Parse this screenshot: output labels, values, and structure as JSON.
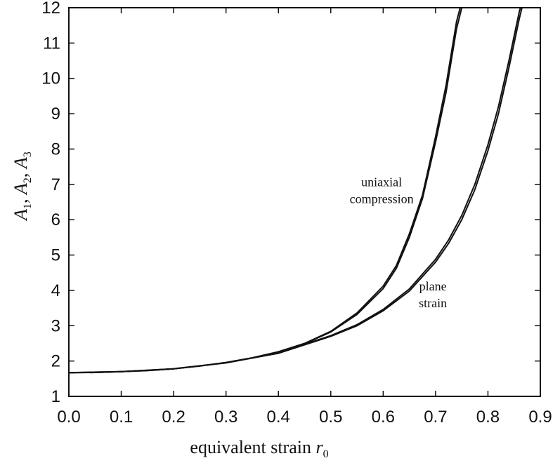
{
  "chart_data": {
    "type": "line",
    "xlabel_text": "equivalent strain ",
    "xlabel_var": "r",
    "xlabel_sub": "0",
    "ylabel": [
      {
        "var": "A",
        "sub": "1",
        "sep": ",  "
      },
      {
        "var": "A",
        "sub": "2",
        "sep": ",  "
      },
      {
        "var": "A",
        "sub": "3",
        "sep": ""
      }
    ],
    "xlim": [
      0.0,
      0.9
    ],
    "ylim": [
      1,
      12
    ],
    "xticks": [
      0.0,
      0.1,
      0.2,
      0.3,
      0.4,
      0.5,
      0.6,
      0.7,
      0.8,
      0.9
    ],
    "xtick_labels": [
      "0.0",
      "0.1",
      "0.2",
      "0.3",
      "0.4",
      "0.5",
      "0.6",
      "0.7",
      "0.8",
      "0.9"
    ],
    "yticks": [
      1,
      2,
      3,
      4,
      5,
      6,
      7,
      8,
      9,
      10,
      11,
      12
    ],
    "ytick_labels": [
      "1",
      "2",
      "3",
      "4",
      "5",
      "6",
      "7",
      "8",
      "9",
      "10",
      "11",
      "12"
    ],
    "grid": false,
    "annotations": [
      {
        "lines": [
          "uniaxial",
          "compression"
        ],
        "x": 0.597,
        "y": 6.95
      },
      {
        "lines": [
          "plane",
          "strain"
        ],
        "x": 0.695,
        "y": 4.0
      }
    ],
    "series": [
      {
        "x": [
          0.0,
          0.05,
          0.1,
          0.15,
          0.2,
          0.25,
          0.3,
          0.35,
          0.4,
          0.45,
          0.5,
          0.55,
          0.6,
          0.625,
          0.65,
          0.675,
          0.7,
          0.72,
          0.74,
          0.75
        ],
        "y": [
          1.67,
          1.675,
          1.7,
          1.73,
          1.78,
          1.86,
          1.96,
          2.09,
          2.26,
          2.49,
          2.82,
          3.32,
          4.05,
          4.62,
          5.5,
          6.6,
          8.2,
          9.6,
          11.4,
          12.0
        ]
      },
      {
        "x": [
          0.0,
          0.05,
          0.1,
          0.15,
          0.2,
          0.25,
          0.3,
          0.35,
          0.4,
          0.45,
          0.5,
          0.55,
          0.6,
          0.625,
          0.65,
          0.675,
          0.7,
          0.72,
          0.74,
          0.747
        ],
        "y": [
          1.67,
          1.675,
          1.7,
          1.73,
          1.78,
          1.86,
          1.96,
          2.09,
          2.26,
          2.5,
          2.84,
          3.36,
          4.12,
          4.7,
          5.6,
          6.7,
          8.35,
          9.8,
          11.6,
          12.0
        ]
      },
      {
        "x": [
          0.0,
          0.1,
          0.2,
          0.3,
          0.4,
          0.5,
          0.55,
          0.6,
          0.65,
          0.7,
          0.725,
          0.75,
          0.775,
          0.8,
          0.82,
          0.84,
          0.86,
          0.865
        ],
        "y": [
          1.67,
          1.7,
          1.78,
          1.95,
          2.22,
          2.7,
          3.0,
          3.42,
          3.98,
          4.8,
          5.33,
          6.0,
          6.85,
          7.95,
          9.0,
          10.3,
          11.7,
          12.0
        ]
      },
      {
        "x": [
          0.0,
          0.1,
          0.2,
          0.3,
          0.4,
          0.5,
          0.55,
          0.6,
          0.65,
          0.7,
          0.725,
          0.75,
          0.775,
          0.8,
          0.82,
          0.84,
          0.86,
          0.862
        ],
        "y": [
          1.67,
          1.7,
          1.78,
          1.95,
          2.23,
          2.72,
          3.03,
          3.46,
          4.04,
          4.88,
          5.43,
          6.12,
          7.0,
          8.12,
          9.2,
          10.5,
          11.9,
          12.0
        ]
      }
    ]
  }
}
